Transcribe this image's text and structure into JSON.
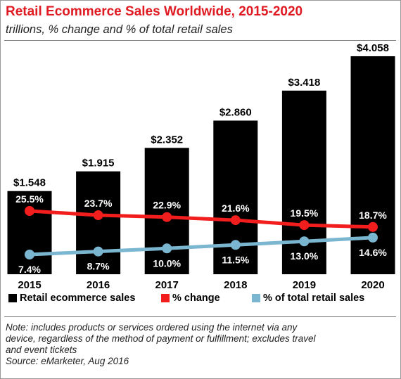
{
  "colors": {
    "bars": "#000000",
    "change_line": "#f21d1d",
    "share_line": "#7ab6d0",
    "title": "#e01a22"
  },
  "chart_data": {
    "type": "bar",
    "title": "Retail Ecommerce Sales Worldwide, 2015-2020",
    "subtitle": "trillions, % change and % of total retail sales",
    "categories": [
      "2015",
      "2016",
      "2017",
      "2018",
      "2019",
      "2020"
    ],
    "series": [
      {
        "name": "Retail ecommerce sales",
        "type": "bar",
        "values": [
          1.548,
          1.915,
          2.352,
          2.86,
          3.418,
          4.058
        ],
        "labels": [
          "$1.548",
          "$1.915",
          "$2.352",
          "$2.860",
          "$3.418",
          "$4.058"
        ]
      },
      {
        "name": "% change",
        "type": "line",
        "values": [
          25.5,
          23.7,
          22.9,
          21.6,
          19.5,
          18.7
        ],
        "labels": [
          "25.5%",
          "23.7%",
          "22.9%",
          "21.6%",
          "19.5%",
          "18.7%"
        ]
      },
      {
        "name": "% of total retail sales",
        "type": "line",
        "values": [
          7.4,
          8.7,
          10.0,
          11.5,
          13.0,
          14.6
        ],
        "labels": [
          "7.4%",
          "8.7%",
          "10.0%",
          "11.5%",
          "13.0%",
          "14.6%"
        ]
      }
    ],
    "legend_position": "bottom",
    "grid": false
  },
  "notes": {
    "lines": [
      "Note: includes products or services ordered using the internet via any",
      "device, regardless of the method of payment or fulfillment; excludes travel",
      "and event tickets"
    ],
    "source": "Source: eMarketer, Aug 2016"
  }
}
